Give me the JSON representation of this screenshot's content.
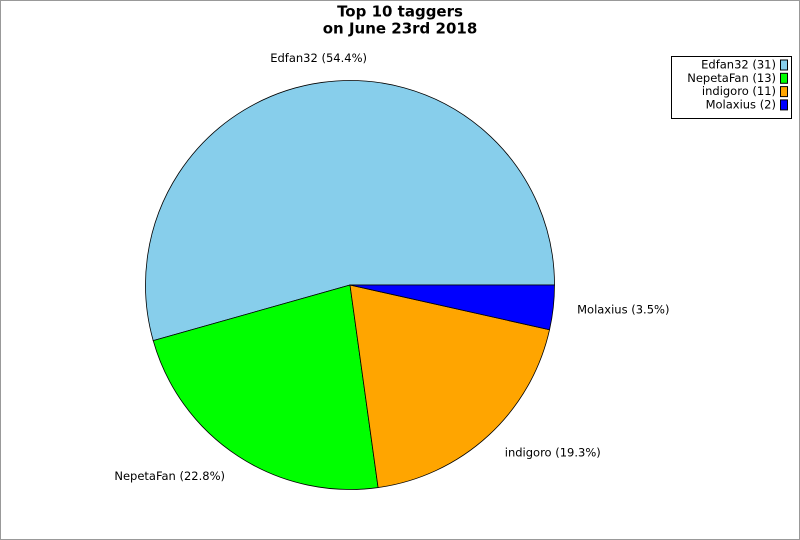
{
  "chart_data": {
    "type": "pie",
    "title": [
      "Top 10 taggers",
      "on June 23rd 2018"
    ],
    "categories": [
      "Edfan32",
      "NepetaFan",
      "indigoro",
      "Molaxius"
    ],
    "values": [
      31,
      13,
      11,
      2
    ],
    "colors": [
      "#87ceeb",
      "#00ff00",
      "#ffa500",
      "#0000ff"
    ],
    "value_labels": [
      "Edfan32 (54.4%)",
      "NepetaFan (22.8%)",
      "indigoro (19.3%)",
      "Molaxius (3.5%)"
    ],
    "legend_labels": [
      "Edfan32 (31)",
      "NepetaFan (13)",
      "indigoro (11)",
      "Molaxius (2)"
    ],
    "legend": "top-right"
  }
}
